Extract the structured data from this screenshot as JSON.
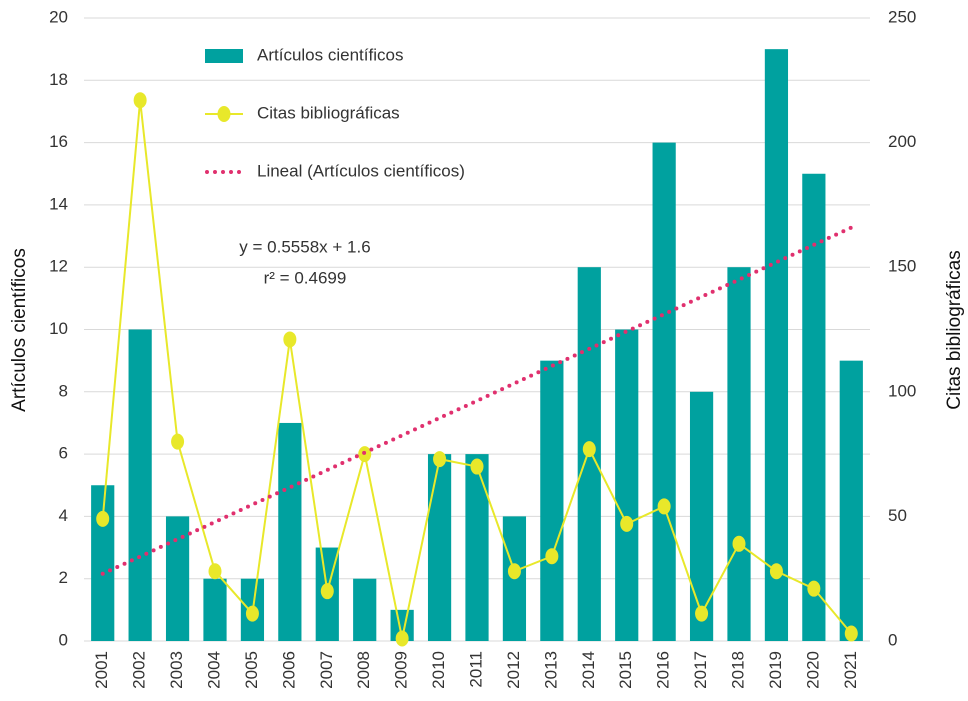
{
  "chart_data": {
    "type": "bar",
    "categories": [
      "2001",
      "2002",
      "2003",
      "2004",
      "2005",
      "2006",
      "2007",
      "2008",
      "2009",
      "2010",
      "2011",
      "2012",
      "2013",
      "2014",
      "2015",
      "2016",
      "2017",
      "2018",
      "2019",
      "2020",
      "2021"
    ],
    "series": [
      {
        "name": "Artículos científicos",
        "type": "bar",
        "color": "#00a19f",
        "values": [
          5,
          10,
          4,
          2,
          2,
          7,
          3,
          2,
          1,
          6,
          6,
          4,
          9,
          12,
          10,
          16,
          8,
          12,
          19,
          15,
          9
        ]
      },
      {
        "name": "Citas bibliográficas",
        "type": "line",
        "axis": "y2",
        "color": "#e8e82a",
        "values": [
          49,
          217,
          80,
          28,
          11,
          121,
          20,
          75,
          1,
          73,
          70,
          28,
          34,
          77,
          47,
          54,
          11,
          39,
          28,
          21,
          3
        ]
      },
      {
        "name": "Lineal (Artículos científicos)",
        "type": "trend",
        "color": "#e0306e",
        "values": [
          2.16,
          2.71,
          3.27,
          3.82,
          4.38,
          4.93,
          5.49,
          6.05,
          6.6,
          7.16,
          7.71,
          8.27,
          8.83,
          9.38,
          9.94,
          10.49,
          11.05,
          11.6,
          12.16,
          12.72,
          13.27
        ]
      }
    ],
    "ylabel": "Artículos científicos",
    "y2label": "Citas bibliográficas",
    "annotations": [
      "y = 0.5558x + 1.6",
      "r² = 0.4699"
    ],
    "ylim": [
      0,
      20
    ],
    "yticks": [
      0,
      2,
      4,
      6,
      8,
      10,
      12,
      14,
      16,
      18,
      20
    ],
    "y2lim": [
      0,
      250
    ],
    "y2ticks": [
      0,
      50,
      100,
      150,
      200,
      250
    ],
    "grid": true,
    "legend": "upper left"
  }
}
